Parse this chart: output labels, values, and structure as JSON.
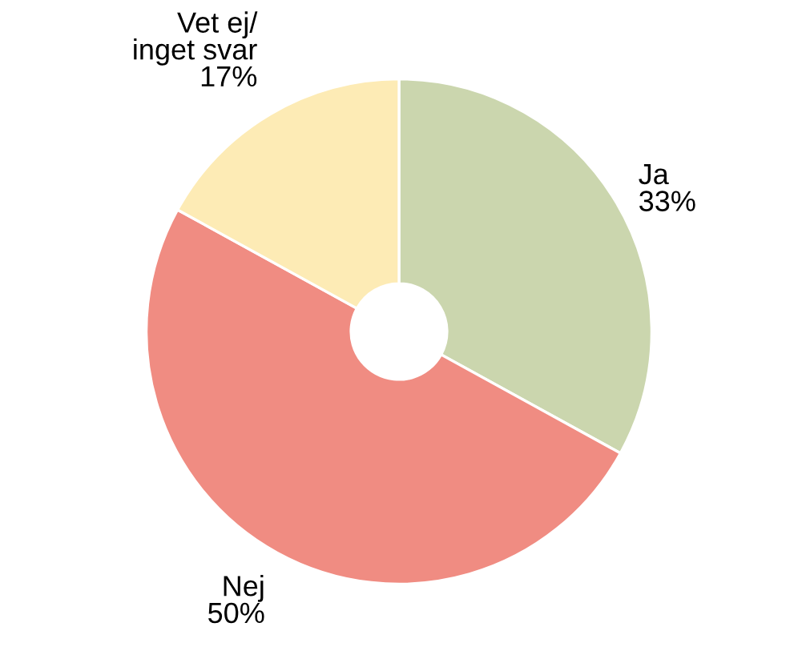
{
  "chart_data": {
    "type": "donut",
    "categories": [
      "Ja",
      "Nej",
      "Vet ej/\ninget svar"
    ],
    "values": [
      33,
      50,
      17
    ],
    "colors": [
      "#cbd6ae",
      "#f08c82",
      "#fdebb5"
    ],
    "value_labels": [
      "33%",
      "50%",
      "17%"
    ],
    "legend": false
  }
}
